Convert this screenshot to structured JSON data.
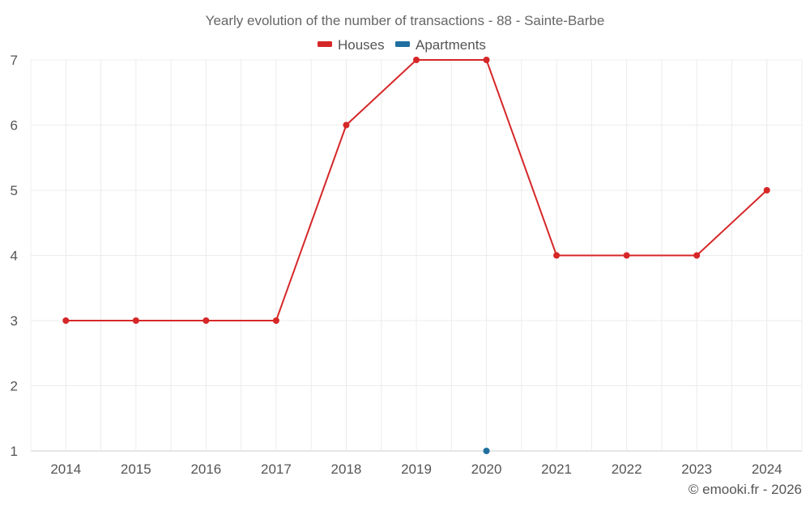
{
  "chart_data": {
    "type": "line",
    "title": "Yearly evolution of the number of transactions - 88 - Sainte-Barbe",
    "categories": [
      "2014",
      "2015",
      "2016",
      "2017",
      "2018",
      "2019",
      "2020",
      "2021",
      "2022",
      "2023",
      "2024"
    ],
    "series": [
      {
        "name": "Houses",
        "color": "#d62728",
        "values": [
          3,
          3,
          3,
          3,
          6,
          7,
          7,
          4,
          4,
          4,
          5
        ]
      },
      {
        "name": "Apartments",
        "color": "#1f6fa0",
        "values": [
          null,
          null,
          null,
          null,
          null,
          null,
          1,
          null,
          null,
          null,
          null
        ]
      }
    ],
    "y_ticks": [
      1,
      2,
      3,
      4,
      5,
      6,
      7
    ],
    "ylim": [
      1,
      7
    ],
    "grid": true,
    "legend_position": "top-center",
    "credit": "© emooki.fr - 2026"
  }
}
